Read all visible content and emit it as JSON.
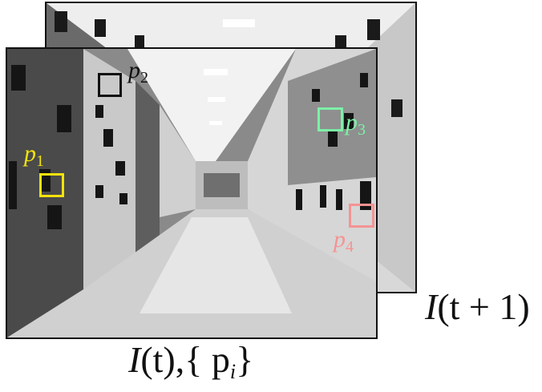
{
  "captions": {
    "next_frame_main": "I",
    "next_frame_arg": "(t + 1)",
    "current_frame_main": "I",
    "current_frame_arg": "(t),",
    "current_frame_points": "{ p",
    "current_frame_points_sub": "i",
    "current_frame_points_close": "}"
  },
  "points": [
    {
      "letter": "p",
      "index": "1",
      "color": "#f4e20c"
    },
    {
      "letter": "p",
      "index": "2",
      "color": "#111111"
    },
    {
      "letter": "p",
      "index": "3",
      "color": "#7df0a8"
    },
    {
      "letter": "p",
      "index": "4",
      "color": "#f59393"
    }
  ],
  "colors": {
    "floor": "#d8d8d8",
    "wall_dark": "#5a5a5a",
    "wall_light": "#c8c8c8",
    "ceiling": "#eeeeee"
  }
}
